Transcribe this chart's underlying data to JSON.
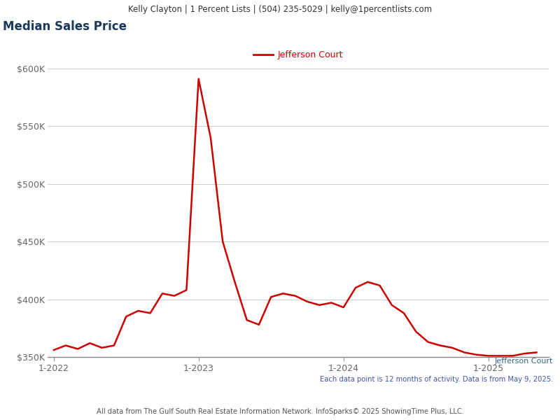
{
  "title": "Median Sales Price",
  "header": "Kelly Clayton | 1 Percent Lists | (504) 235-5029 | kelly@1percentlists.com",
  "footer": "All data from The Gulf South Real Estate Information Network. InfoSparks© 2025 ShowingTime Plus, LLC.",
  "footer2": "Each data point is 12 months of activity. Data is from May 9, 2025.",
  "legend_label": "Jefferson Court",
  "line_color": "#cc0000",
  "background_color": "#ffffff",
  "header_bg": "#eeeeee",
  "ylim": [
    350000,
    612000
  ],
  "yticks": [
    350000,
    400000,
    450000,
    500000,
    550000,
    600000
  ],
  "xlabel_color": "#666666",
  "ylabel_color": "#666666",
  "grid_color": "#cccccc",
  "x_labels": [
    "1-2022",
    "1-2023",
    "1-2024",
    "1-2025"
  ],
  "x_tick_positions": [
    0,
    12,
    24,
    36
  ],
  "x_data": [
    0,
    1,
    2,
    3,
    4,
    5,
    6,
    7,
    8,
    9,
    10,
    11,
    12,
    13,
    14,
    15,
    16,
    17,
    18,
    19,
    20,
    21,
    22,
    23,
    24,
    25,
    26,
    27,
    28,
    29,
    30,
    31,
    32,
    33,
    34,
    35,
    36,
    37,
    38,
    39,
    40
  ],
  "y_data": [
    356000,
    360000,
    357000,
    362000,
    358000,
    360000,
    385000,
    390000,
    388000,
    405000,
    403000,
    408000,
    591000,
    540000,
    450000,
    415000,
    382000,
    378000,
    402000,
    405000,
    403000,
    398000,
    395000,
    397000,
    393000,
    410000,
    415000,
    412000,
    395000,
    388000,
    372000,
    363000,
    360000,
    358000,
    354000,
    352000,
    351000,
    351000,
    351000,
    353000,
    354000
  ],
  "title_color": "#1a3a5c",
  "title_fontsize": 12,
  "axis_tick_fontsize": 9,
  "legend_color": "#cc0000",
  "note_color": "#4455aa",
  "label_color_right": "#336699",
  "xlim": [
    -0.5,
    41.0
  ]
}
